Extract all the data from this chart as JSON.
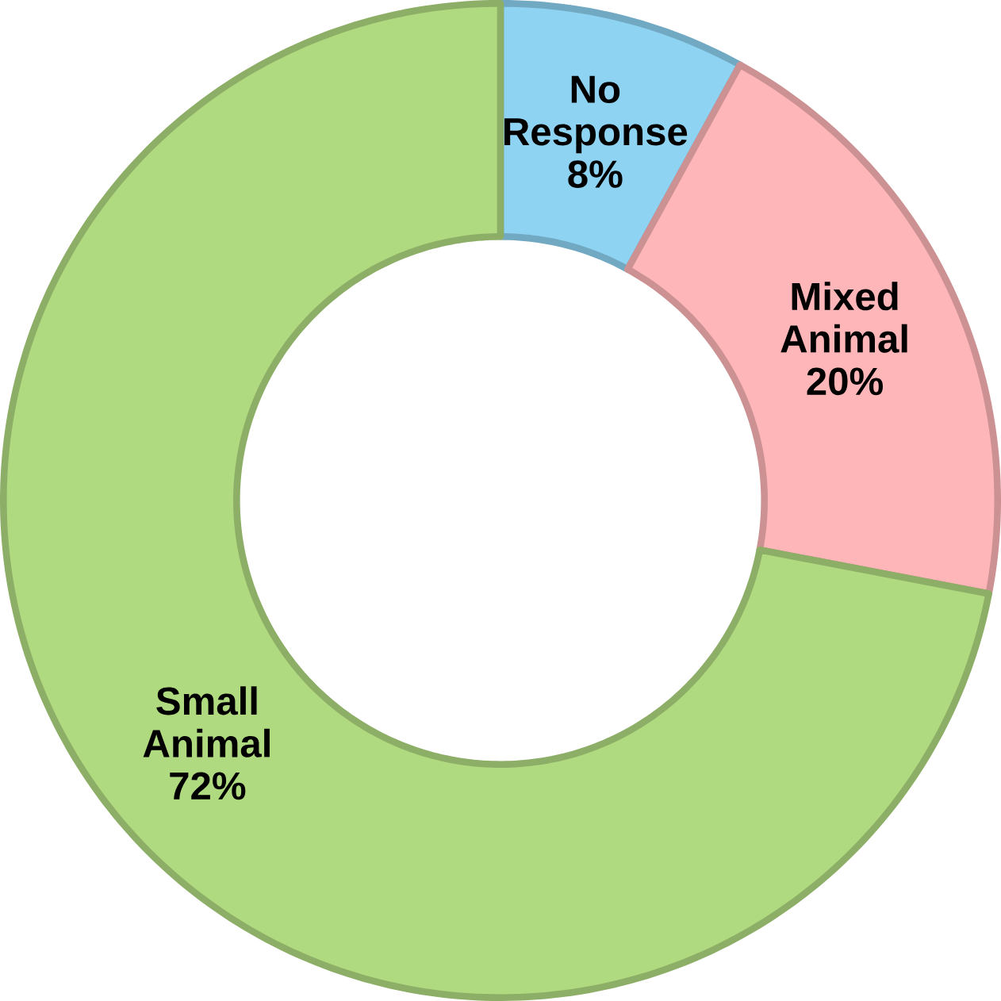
{
  "chart_data": {
    "type": "donut",
    "categories": [
      "No Response",
      "Mixed Animal",
      "Small Animal"
    ],
    "values": [
      8,
      20,
      72
    ],
    "colors": [
      "#8fd3f2",
      "#ffb6b8",
      "#b0da7f"
    ],
    "value_labels": [
      "8%",
      "20%",
      "72%"
    ]
  }
}
